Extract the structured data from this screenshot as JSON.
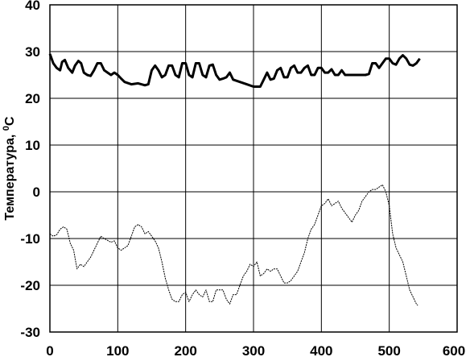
{
  "chart_data": {
    "type": "line",
    "title": "",
    "xlabel": "",
    "ylabel": "Температура, °С",
    "ylabel_main": "Температура, ",
    "ylabel_sup": "0",
    "ylabel_unit": "С",
    "xlim": [
      0,
      600
    ],
    "ylim": [
      -30,
      40
    ],
    "x_ticks": [
      0,
      100,
      200,
      300,
      400,
      500,
      600
    ],
    "y_ticks": [
      40,
      30,
      20,
      10,
      0,
      -10,
      -20,
      -30
    ],
    "grid": true,
    "legend": "none",
    "series": [
      {
        "color": "#000000",
        "style": "thick",
        "points": [
          [
            0,
            29.5
          ],
          [
            5,
            27.5
          ],
          [
            10,
            26.5
          ],
          [
            15,
            26
          ],
          [
            18,
            27.8
          ],
          [
            22,
            28.2
          ],
          [
            27,
            26.5
          ],
          [
            33,
            25.5
          ],
          [
            37,
            27
          ],
          [
            42,
            28
          ],
          [
            46,
            27.5
          ],
          [
            50,
            25.5
          ],
          [
            55,
            25
          ],
          [
            60,
            24.8
          ],
          [
            65,
            26
          ],
          [
            70,
            27.5
          ],
          [
            75,
            27.5
          ],
          [
            80,
            26
          ],
          [
            85,
            25.5
          ],
          [
            90,
            25
          ],
          [
            95,
            25.5
          ],
          [
            100,
            25
          ],
          [
            105,
            24.2
          ],
          [
            110,
            23.5
          ],
          [
            120,
            23
          ],
          [
            130,
            23.2
          ],
          [
            140,
            22.8
          ],
          [
            145,
            23
          ],
          [
            150,
            26
          ],
          [
            155,
            27
          ],
          [
            160,
            26
          ],
          [
            165,
            24.5
          ],
          [
            170,
            25
          ],
          [
            175,
            27
          ],
          [
            180,
            27
          ],
          [
            185,
            25
          ],
          [
            190,
            24.5
          ],
          [
            195,
            27.5
          ],
          [
            200,
            27.5
          ],
          [
            205,
            25
          ],
          [
            210,
            24.5
          ],
          [
            215,
            27.5
          ],
          [
            220,
            27.5
          ],
          [
            225,
            25
          ],
          [
            230,
            24.5
          ],
          [
            235,
            27
          ],
          [
            240,
            27.2
          ],
          [
            245,
            25
          ],
          [
            250,
            24
          ],
          [
            255,
            24.2
          ],
          [
            260,
            24.5
          ],
          [
            265,
            25.5
          ],
          [
            270,
            24
          ],
          [
            280,
            23.5
          ],
          [
            290,
            23
          ],
          [
            300,
            22.5
          ],
          [
            310,
            22.5
          ],
          [
            315,
            24
          ],
          [
            320,
            25.5
          ],
          [
            325,
            24
          ],
          [
            330,
            24.2
          ],
          [
            335,
            26
          ],
          [
            340,
            26.5
          ],
          [
            345,
            24.5
          ],
          [
            350,
            24.5
          ],
          [
            355,
            26.5
          ],
          [
            360,
            27
          ],
          [
            365,
            25.5
          ],
          [
            370,
            25.5
          ],
          [
            375,
            26.5
          ],
          [
            380,
            27
          ],
          [
            385,
            25
          ],
          [
            390,
            25
          ],
          [
            395,
            26.5
          ],
          [
            400,
            26.5
          ],
          [
            405,
            25.5
          ],
          [
            410,
            25.5
          ],
          [
            415,
            26.2
          ],
          [
            420,
            25
          ],
          [
            425,
            25
          ],
          [
            430,
            26
          ],
          [
            435,
            25
          ],
          [
            450,
            25
          ],
          [
            465,
            25
          ],
          [
            470,
            25.2
          ],
          [
            475,
            27.5
          ],
          [
            480,
            27.5
          ],
          [
            485,
            26.5
          ],
          [
            490,
            27.5
          ],
          [
            495,
            28.5
          ],
          [
            500,
            28.5
          ],
          [
            505,
            27.5
          ],
          [
            510,
            27.2
          ],
          [
            515,
            28.5
          ],
          [
            520,
            29.2
          ],
          [
            525,
            28.5
          ],
          [
            530,
            27.2
          ],
          [
            535,
            27
          ],
          [
            540,
            27.5
          ],
          [
            545,
            28.5
          ]
        ]
      },
      {
        "color": "#000000",
        "style": "thin",
        "points": [
          [
            0,
            -9
          ],
          [
            5,
            -9.5
          ],
          [
            10,
            -9.2
          ],
          [
            15,
            -8
          ],
          [
            20,
            -7.5
          ],
          [
            25,
            -8
          ],
          [
            30,
            -11
          ],
          [
            35,
            -12.5
          ],
          [
            40,
            -16.5
          ],
          [
            45,
            -15.5
          ],
          [
            50,
            -16
          ],
          [
            55,
            -15
          ],
          [
            60,
            -14
          ],
          [
            65,
            -12.5
          ],
          [
            70,
            -11
          ],
          [
            75,
            -9.5
          ],
          [
            80,
            -10
          ],
          [
            90,
            -10.8
          ],
          [
            95,
            -10.5
          ],
          [
            100,
            -12
          ],
          [
            105,
            -12.5
          ],
          [
            110,
            -12
          ],
          [
            115,
            -11.5
          ],
          [
            120,
            -9.5
          ],
          [
            125,
            -7.5
          ],
          [
            130,
            -7
          ],
          [
            135,
            -7.5
          ],
          [
            140,
            -9
          ],
          [
            145,
            -8.5
          ],
          [
            150,
            -9.5
          ],
          [
            155,
            -10.5
          ],
          [
            160,
            -12
          ],
          [
            165,
            -15
          ],
          [
            170,
            -18.5
          ],
          [
            175,
            -21
          ],
          [
            180,
            -23
          ],
          [
            185,
            -23.5
          ],
          [
            190,
            -23.5
          ],
          [
            195,
            -22
          ],
          [
            200,
            -21.5
          ],
          [
            205,
            -23.5
          ],
          [
            210,
            -22
          ],
          [
            215,
            -21
          ],
          [
            220,
            -22
          ],
          [
            225,
            -22.5
          ],
          [
            230,
            -21
          ],
          [
            235,
            -23.5
          ],
          [
            240,
            -23.5
          ],
          [
            245,
            -21
          ],
          [
            250,
            -21
          ],
          [
            255,
            -21
          ],
          [
            260,
            -23
          ],
          [
            265,
            -24
          ],
          [
            270,
            -22
          ],
          [
            275,
            -22
          ],
          [
            280,
            -20
          ],
          [
            285,
            -18
          ],
          [
            290,
            -17
          ],
          [
            295,
            -15.5
          ],
          [
            300,
            -16
          ],
          [
            305,
            -15
          ],
          [
            310,
            -18
          ],
          [
            315,
            -17.5
          ],
          [
            320,
            -16.5
          ],
          [
            325,
            -17
          ],
          [
            330,
            -16.5
          ],
          [
            335,
            -16.5
          ],
          [
            340,
            -18
          ],
          [
            345,
            -19.5
          ],
          [
            350,
            -19.5
          ],
          [
            355,
            -19
          ],
          [
            360,
            -18
          ],
          [
            365,
            -17
          ],
          [
            370,
            -15
          ],
          [
            375,
            -13
          ],
          [
            380,
            -10
          ],
          [
            385,
            -8
          ],
          [
            390,
            -7
          ],
          [
            395,
            -5
          ],
          [
            400,
            -3
          ],
          [
            405,
            -2.5
          ],
          [
            410,
            -1.5
          ],
          [
            415,
            -3
          ],
          [
            420,
            -2.5
          ],
          [
            425,
            -2
          ],
          [
            430,
            -3.5
          ],
          [
            435,
            -4.5
          ],
          [
            440,
            -5.5
          ],
          [
            445,
            -6.5
          ],
          [
            450,
            -5
          ],
          [
            455,
            -4
          ],
          [
            460,
            -2
          ],
          [
            465,
            -1
          ],
          [
            470,
            0
          ],
          [
            475,
            0.5
          ],
          [
            480,
            0.5
          ],
          [
            485,
            1
          ],
          [
            490,
            1.5
          ],
          [
            495,
            0
          ],
          [
            500,
            -3
          ],
          [
            505,
            -9
          ],
          [
            510,
            -12
          ],
          [
            515,
            -13.5
          ],
          [
            520,
            -15
          ],
          [
            525,
            -18
          ],
          [
            530,
            -21
          ],
          [
            535,
            -22.5
          ],
          [
            540,
            -24
          ],
          [
            542,
            -24.3
          ]
        ]
      }
    ]
  }
}
